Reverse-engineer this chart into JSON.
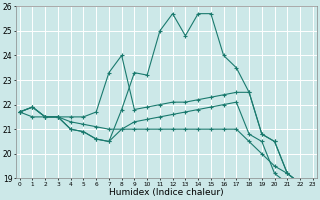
{
  "xlabel": "Humidex (Indice chaleur)",
  "bg_color": "#cce8e8",
  "grid_color": "#ffffff",
  "line_color": "#1a7a6e",
  "x_min": 0,
  "x_max": 23,
  "y_min": 19,
  "y_max": 26,
  "series": [
    {
      "x": [
        0,
        1,
        2,
        3,
        4,
        5,
        6,
        7,
        8,
        9,
        10,
        11,
        12,
        13,
        14,
        15,
        16,
        17,
        18,
        19,
        20,
        21,
        22,
        23
      ],
      "y": [
        21.7,
        21.9,
        21.5,
        21.5,
        21.0,
        20.9,
        20.6,
        20.5,
        21.8,
        23.3,
        23.2,
        25.0,
        25.7,
        24.8,
        25.7,
        25.7,
        24.0,
        23.5,
        22.5,
        20.8,
        20.5,
        19.2,
        18.8,
        18.7
      ]
    },
    {
      "x": [
        0,
        1,
        2,
        3,
        4,
        5,
        6,
        7,
        8,
        9,
        10,
        11,
        12,
        13,
        14,
        15,
        16,
        17,
        18,
        19,
        20,
        21,
        22,
        23
      ],
      "y": [
        21.7,
        21.9,
        21.5,
        21.5,
        21.5,
        21.5,
        21.7,
        23.3,
        24.0,
        21.8,
        21.9,
        22.0,
        22.1,
        22.1,
        22.2,
        22.3,
        22.4,
        22.5,
        22.5,
        20.8,
        20.5,
        19.2,
        18.8,
        18.7
      ]
    },
    {
      "x": [
        0,
        1,
        2,
        3,
        4,
        5,
        6,
        7,
        8,
        9,
        10,
        11,
        12,
        13,
        14,
        15,
        16,
        17,
        18,
        19,
        20,
        21,
        22,
        23
      ],
      "y": [
        21.7,
        21.9,
        21.5,
        21.5,
        21.0,
        20.9,
        20.6,
        20.5,
        21.0,
        21.3,
        21.4,
        21.5,
        21.6,
        21.7,
        21.8,
        21.9,
        22.0,
        22.1,
        20.8,
        20.5,
        19.2,
        18.8,
        18.7,
        18.7
      ]
    },
    {
      "x": [
        0,
        1,
        2,
        3,
        4,
        5,
        6,
        7,
        8,
        9,
        10,
        11,
        12,
        13,
        14,
        15,
        16,
        17,
        18,
        19,
        20,
        21,
        22,
        23
      ],
      "y": [
        21.7,
        21.5,
        21.5,
        21.5,
        21.3,
        21.2,
        21.1,
        21.0,
        21.0,
        21.0,
        21.0,
        21.0,
        21.0,
        21.0,
        21.0,
        21.0,
        21.0,
        21.0,
        20.5,
        20.0,
        19.5,
        19.2,
        18.8,
        18.7
      ]
    }
  ],
  "x_ticks": [
    0,
    1,
    2,
    3,
    4,
    5,
    6,
    7,
    8,
    9,
    10,
    11,
    12,
    13,
    14,
    15,
    16,
    17,
    18,
    19,
    20,
    21,
    22,
    23
  ],
  "y_ticks": [
    19,
    20,
    21,
    22,
    23,
    24,
    25,
    26
  ]
}
